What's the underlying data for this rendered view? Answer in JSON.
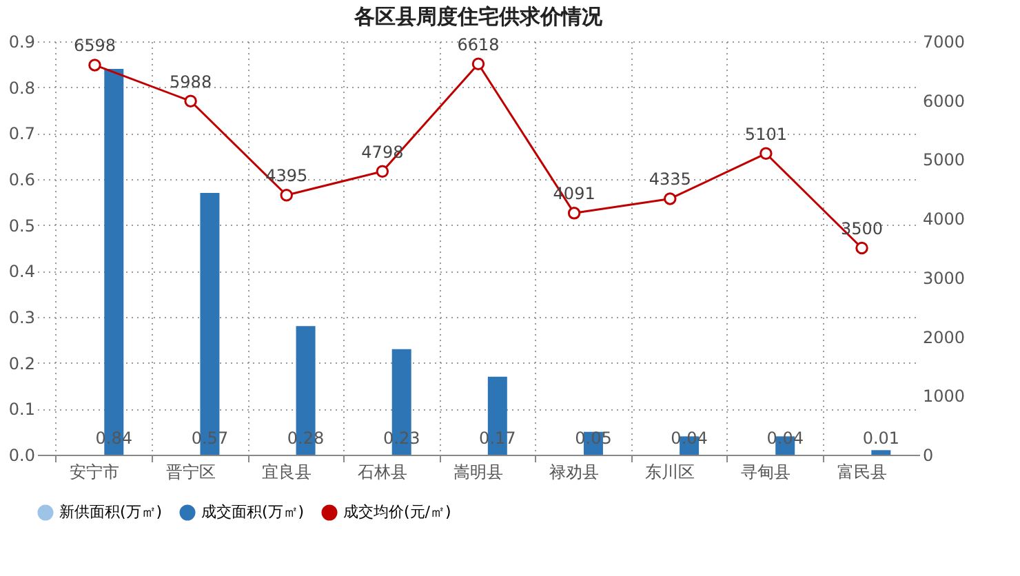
{
  "chart_data": {
    "type": "bar",
    "title": "各区县周度住宅供求价情况",
    "categories": [
      "安宁市",
      "晋宁区",
      "宜良县",
      "石林县",
      "嵩明县",
      "禄劝县",
      "东川区",
      "寻甸县",
      "富民县"
    ],
    "series": [
      {
        "name": "新供面积(万㎡)",
        "color": "#9dc3e6",
        "values": [
          null,
          null,
          null,
          null,
          null,
          null,
          null,
          null,
          null
        ]
      },
      {
        "name": "成交面积(万㎡)",
        "color": "#2e75b6",
        "values": [
          0.84,
          0.57,
          0.28,
          0.23,
          0.17,
          0.05,
          0.04,
          0.04,
          0.01
        ]
      },
      {
        "name": "成交均价(元/㎡)",
        "type": "line",
        "axis": "y2",
        "color": "#c00000",
        "values": [
          6598,
          5988,
          4395,
          4798,
          6618,
          4091,
          4335,
          5101,
          3500
        ]
      }
    ],
    "ylim": [
      0,
      0.9
    ],
    "yticks": [
      {
        "value": 0,
        "label": "0.0"
      },
      0.1,
      0.2,
      0.3,
      0.4,
      0.5,
      0.6,
      0.7,
      0.8,
      0.9
    ],
    "y2lim": [
      0,
      7000
    ],
    "y2ticks": [
      0,
      1000,
      2000,
      3000,
      4000,
      5000,
      6000,
      7000
    ],
    "grid": true,
    "legend": "bottom",
    "marker": "circle",
    "line_style": "solid",
    "data_labels": true
  }
}
